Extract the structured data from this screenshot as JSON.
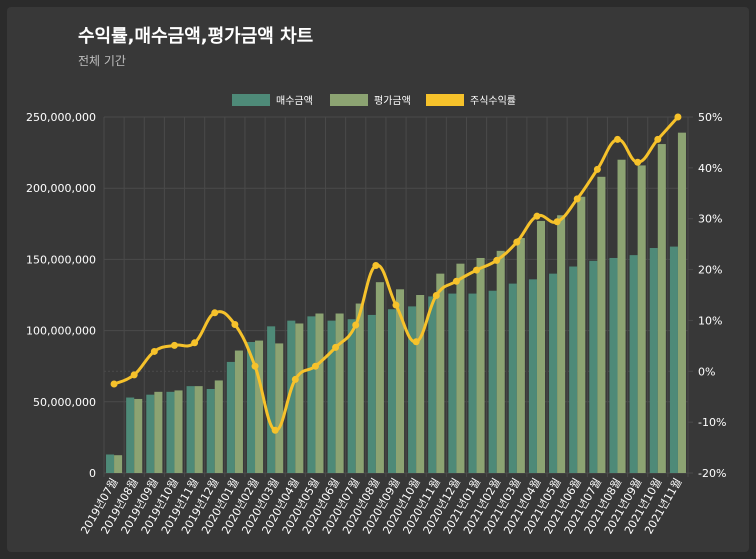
{
  "header": {
    "title": "수익률,매수금액,평가금액 차트",
    "subtitle": "전체 기간"
  },
  "colors": {
    "buy": "#4e8a78",
    "eval": "#8ca372",
    "rate": "#f6c22b",
    "grid": "#4a4a4a",
    "panel": "#383838"
  },
  "chart_data": {
    "type": "bar",
    "title": "수익률,매수금액,평가금액 차트",
    "subtitle": "전체 기간",
    "categories": [
      "2019년07월",
      "2019년08월",
      "2019년09월",
      "2019년10월",
      "2019년11월",
      "2019년12월",
      "2020년01월",
      "2020년02월",
      "2020년03월",
      "2020년04월",
      "2020년05월",
      "2020년06월",
      "2020년07월",
      "2020년08월",
      "2020년09월",
      "2020년10월",
      "2020년11월",
      "2020년12월",
      "2021년01월",
      "2021년02월",
      "2021년03월",
      "2021년04월",
      "2021년05월",
      "2021년06월",
      "2021년07월",
      "2021년08월",
      "2021년09월",
      "2021년10월",
      "2021년11월"
    ],
    "series": [
      {
        "name": "매수금액",
        "type": "bar",
        "axis": "left",
        "values": [
          13000000,
          53000000,
          55000000,
          57000000,
          61000000,
          59000000,
          78000000,
          92000000,
          103000000,
          107000000,
          110000000,
          107000000,
          108000000,
          111000000,
          115000000,
          117000000,
          124000000,
          126000000,
          126000000,
          128000000,
          133000000,
          136000000,
          140000000,
          145000000,
          149000000,
          151000000,
          153000000,
          158000000,
          159000000
        ]
      },
      {
        "name": "평가금액",
        "type": "bar",
        "axis": "left",
        "values": [
          12500000,
          52000000,
          57000000,
          58000000,
          61000000,
          65000000,
          86000000,
          93000000,
          91000000,
          105000000,
          112000000,
          112000000,
          119000000,
          134000000,
          129000000,
          125000000,
          140000000,
          147000000,
          151000000,
          156000000,
          165000000,
          177000000,
          181000000,
          194000000,
          208000000,
          220000000,
          216000000,
          231000000,
          239000000
        ]
      },
      {
        "name": "주식수익률",
        "type": "line",
        "axis": "right",
        "values": [
          -2.5,
          -0.7,
          3.9,
          5.1,
          5.6,
          11.5,
          9.2,
          1.0,
          -11.6,
          -1.6,
          1.0,
          4.7,
          9.1,
          20.8,
          13.0,
          5.8,
          14.9,
          17.7,
          19.9,
          21.8,
          25.4,
          30.5,
          29.4,
          33.9,
          39.7,
          45.6,
          41.1,
          45.6,
          50.0
        ]
      }
    ],
    "y_left": {
      "min": 0,
      "max": 250000000,
      "ticks": [
        "0",
        "50,000,000",
        "100,000,000",
        "150,000,000",
        "200,000,000",
        "250,000,000"
      ]
    },
    "y_right": {
      "min": -20,
      "max": 50,
      "ticks": [
        "-20%",
        "-10%",
        "0%",
        "10%",
        "20%",
        "30%",
        "40%",
        "50%"
      ]
    },
    "legend": [
      "매수금액",
      "평가금액",
      "주식수익률"
    ],
    "legend_position": "top-center",
    "grid": true
  }
}
